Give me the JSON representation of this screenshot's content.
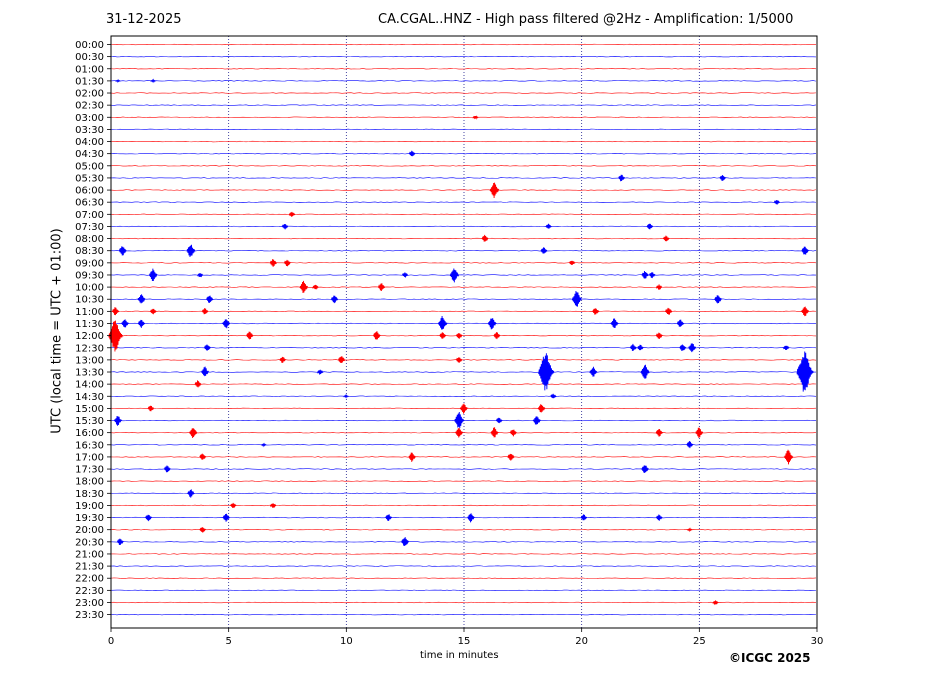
{
  "header": {
    "date": "31-12-2025",
    "title": "CA.CGAL..HNZ - High pass filtered @2Hz - Amplification: 1/5000"
  },
  "footer": {
    "credit": "©ICGC 2025"
  },
  "chart_data": {
    "type": "line",
    "title": "CA.CGAL..HNZ - High pass filtered @2Hz - Amplification: 1/5000",
    "xlabel": "time in minutes",
    "ylabel": "UTC (local time = UTC + 01:00)",
    "xlim": [
      0,
      30
    ],
    "xticks": [
      0,
      5,
      10,
      15,
      20,
      25,
      30
    ],
    "grid": "vertical dotted lines at every 5 minutes",
    "trace_colors": [
      "#ff0000",
      "#0000ff"
    ],
    "rows": [
      "00:00",
      "00:30",
      "01:00",
      "01:30",
      "02:00",
      "02:30",
      "03:00",
      "03:30",
      "04:00",
      "04:30",
      "05:00",
      "05:30",
      "06:00",
      "06:30",
      "07:00",
      "07:30",
      "08:00",
      "08:30",
      "09:00",
      "09:30",
      "10:00",
      "10:30",
      "11:00",
      "11:30",
      "12:00",
      "12:30",
      "13:00",
      "13:30",
      "14:00",
      "14:30",
      "15:00",
      "15:30",
      "16:00",
      "16:30",
      "17:00",
      "17:30",
      "18:00",
      "18:30",
      "19:00",
      "19:30",
      "20:00",
      "20:30",
      "21:00",
      "21:30",
      "22:00",
      "22:30",
      "23:00",
      "23:30"
    ],
    "events": [
      {
        "row": 3,
        "t": 0.3,
        "amp": 0.15
      },
      {
        "row": 3,
        "t": 1.8,
        "amp": 0.2
      },
      {
        "row": 6,
        "t": 15.5,
        "amp": 0.3
      },
      {
        "row": 9,
        "t": 12.8,
        "amp": 0.6
      },
      {
        "row": 11,
        "t": 21.7,
        "amp": 0.7
      },
      {
        "row": 11,
        "t": 26.0,
        "amp": 0.6
      },
      {
        "row": 12,
        "t": 16.3,
        "amp": 1.5
      },
      {
        "row": 13,
        "t": 28.3,
        "amp": 0.5
      },
      {
        "row": 14,
        "t": 7.7,
        "amp": 0.5
      },
      {
        "row": 15,
        "t": 7.4,
        "amp": 0.6
      },
      {
        "row": 15,
        "t": 18.6,
        "amp": 0.5
      },
      {
        "row": 15,
        "t": 22.9,
        "amp": 0.6
      },
      {
        "row": 16,
        "t": 15.9,
        "amp": 0.7
      },
      {
        "row": 16,
        "t": 23.6,
        "amp": 0.6
      },
      {
        "row": 17,
        "t": 0.5,
        "amp": 1.0
      },
      {
        "row": 17,
        "t": 3.4,
        "amp": 1.3
      },
      {
        "row": 17,
        "t": 18.4,
        "amp": 0.7
      },
      {
        "row": 17,
        "t": 29.5,
        "amp": 0.9
      },
      {
        "row": 18,
        "t": 6.9,
        "amp": 0.8
      },
      {
        "row": 18,
        "t": 7.5,
        "amp": 0.7
      },
      {
        "row": 18,
        "t": 19.6,
        "amp": 0.5
      },
      {
        "row": 19,
        "t": 1.8,
        "amp": 1.2
      },
      {
        "row": 19,
        "t": 3.8,
        "amp": 0.4
      },
      {
        "row": 19,
        "t": 12.5,
        "amp": 0.5
      },
      {
        "row": 19,
        "t": 14.6,
        "amp": 1.4
      },
      {
        "row": 19,
        "t": 22.7,
        "amp": 0.8
      },
      {
        "row": 19,
        "t": 23.0,
        "amp": 0.6
      },
      {
        "row": 20,
        "t": 8.2,
        "amp": 1.2
      },
      {
        "row": 20,
        "t": 8.7,
        "amp": 0.5
      },
      {
        "row": 20,
        "t": 11.5,
        "amp": 0.8
      },
      {
        "row": 20,
        "t": 23.3,
        "amp": 0.5
      },
      {
        "row": 21,
        "t": 1.3,
        "amp": 1.0
      },
      {
        "row": 21,
        "t": 4.2,
        "amp": 0.8
      },
      {
        "row": 21,
        "t": 9.5,
        "amp": 0.8
      },
      {
        "row": 21,
        "t": 19.8,
        "amp": 1.6
      },
      {
        "row": 21,
        "t": 25.8,
        "amp": 0.9
      },
      {
        "row": 22,
        "t": 0.2,
        "amp": 0.8
      },
      {
        "row": 22,
        "t": 1.8,
        "amp": 0.6
      },
      {
        "row": 22,
        "t": 4.0,
        "amp": 0.6
      },
      {
        "row": 22,
        "t": 20.6,
        "amp": 0.7
      },
      {
        "row": 22,
        "t": 23.7,
        "amp": 0.8
      },
      {
        "row": 22,
        "t": 29.5,
        "amp": 1.0
      },
      {
        "row": 23,
        "t": 0.6,
        "amp": 0.9
      },
      {
        "row": 23,
        "t": 1.3,
        "amp": 0.8
      },
      {
        "row": 23,
        "t": 4.9,
        "amp": 1.0
      },
      {
        "row": 23,
        "t": 14.1,
        "amp": 1.4
      },
      {
        "row": 23,
        "t": 16.2,
        "amp": 1.2
      },
      {
        "row": 23,
        "t": 21.4,
        "amp": 1.0
      },
      {
        "row": 23,
        "t": 24.2,
        "amp": 0.8
      },
      {
        "row": 24,
        "t": 0.2,
        "amp": 3.0
      },
      {
        "row": 24,
        "t": 5.9,
        "amp": 0.8
      },
      {
        "row": 24,
        "t": 11.3,
        "amp": 0.9
      },
      {
        "row": 24,
        "t": 14.1,
        "amp": 0.7
      },
      {
        "row": 24,
        "t": 14.8,
        "amp": 0.6
      },
      {
        "row": 24,
        "t": 16.4,
        "amp": 0.7
      },
      {
        "row": 24,
        "t": 23.3,
        "amp": 0.7
      },
      {
        "row": 25,
        "t": 4.1,
        "amp": 0.7
      },
      {
        "row": 25,
        "t": 22.2,
        "amp": 0.7
      },
      {
        "row": 25,
        "t": 22.5,
        "amp": 0.6
      },
      {
        "row": 25,
        "t": 24.3,
        "amp": 0.7
      },
      {
        "row": 25,
        "t": 24.7,
        "amp": 1.0
      },
      {
        "row": 25,
        "t": 28.7,
        "amp": 0.5
      },
      {
        "row": 26,
        "t": 7.3,
        "amp": 0.6
      },
      {
        "row": 26,
        "t": 9.8,
        "amp": 0.8
      },
      {
        "row": 26,
        "t": 14.8,
        "amp": 0.6
      },
      {
        "row": 27,
        "t": 4.0,
        "amp": 1.0
      },
      {
        "row": 27,
        "t": 8.9,
        "amp": 0.5
      },
      {
        "row": 27,
        "t": 18.5,
        "amp": 3.5
      },
      {
        "row": 27,
        "t": 20.5,
        "amp": 1.0
      },
      {
        "row": 27,
        "t": 22.7,
        "amp": 1.4
      },
      {
        "row": 27,
        "t": 29.5,
        "amp": 3.8
      },
      {
        "row": 28,
        "t": 3.7,
        "amp": 0.7
      },
      {
        "row": 29,
        "t": 10.0,
        "amp": 0.2
      },
      {
        "row": 29,
        "t": 18.8,
        "amp": 0.5
      },
      {
        "row": 30,
        "t": 1.7,
        "amp": 0.6
      },
      {
        "row": 30,
        "t": 15.0,
        "amp": 1.0
      },
      {
        "row": 30,
        "t": 18.3,
        "amp": 0.9
      },
      {
        "row": 31,
        "t": 0.3,
        "amp": 1.0
      },
      {
        "row": 31,
        "t": 14.8,
        "amp": 1.6
      },
      {
        "row": 31,
        "t": 16.5,
        "amp": 0.6
      },
      {
        "row": 31,
        "t": 18.1,
        "amp": 1.0
      },
      {
        "row": 32,
        "t": 3.5,
        "amp": 1.1
      },
      {
        "row": 32,
        "t": 14.8,
        "amp": 1.0
      },
      {
        "row": 32,
        "t": 16.3,
        "amp": 1.0
      },
      {
        "row": 32,
        "t": 17.1,
        "amp": 0.7
      },
      {
        "row": 32,
        "t": 23.3,
        "amp": 0.8
      },
      {
        "row": 32,
        "t": 25.0,
        "amp": 1.0
      },
      {
        "row": 33,
        "t": 6.5,
        "amp": 0.2
      },
      {
        "row": 33,
        "t": 24.6,
        "amp": 0.7
      },
      {
        "row": 34,
        "t": 3.9,
        "amp": 0.7
      },
      {
        "row": 34,
        "t": 12.8,
        "amp": 0.9
      },
      {
        "row": 34,
        "t": 17.0,
        "amp": 0.8
      },
      {
        "row": 34,
        "t": 28.8,
        "amp": 1.4
      },
      {
        "row": 35,
        "t": 2.4,
        "amp": 0.7
      },
      {
        "row": 35,
        "t": 22.7,
        "amp": 0.9
      },
      {
        "row": 37,
        "t": 3.4,
        "amp": 0.8
      },
      {
        "row": 38,
        "t": 5.2,
        "amp": 0.5
      },
      {
        "row": 38,
        "t": 6.9,
        "amp": 0.5
      },
      {
        "row": 39,
        "t": 1.6,
        "amp": 0.7
      },
      {
        "row": 39,
        "t": 4.9,
        "amp": 0.8
      },
      {
        "row": 39,
        "t": 11.8,
        "amp": 0.7
      },
      {
        "row": 39,
        "t": 15.3,
        "amp": 0.9
      },
      {
        "row": 39,
        "t": 20.1,
        "amp": 0.6
      },
      {
        "row": 39,
        "t": 23.3,
        "amp": 0.6
      },
      {
        "row": 40,
        "t": 3.9,
        "amp": 0.6
      },
      {
        "row": 40,
        "t": 24.6,
        "amp": 0.2
      },
      {
        "row": 41,
        "t": 0.4,
        "amp": 0.7
      },
      {
        "row": 41,
        "t": 12.5,
        "amp": 1.0
      },
      {
        "row": 46,
        "t": 25.7,
        "amp": 0.4
      }
    ]
  }
}
